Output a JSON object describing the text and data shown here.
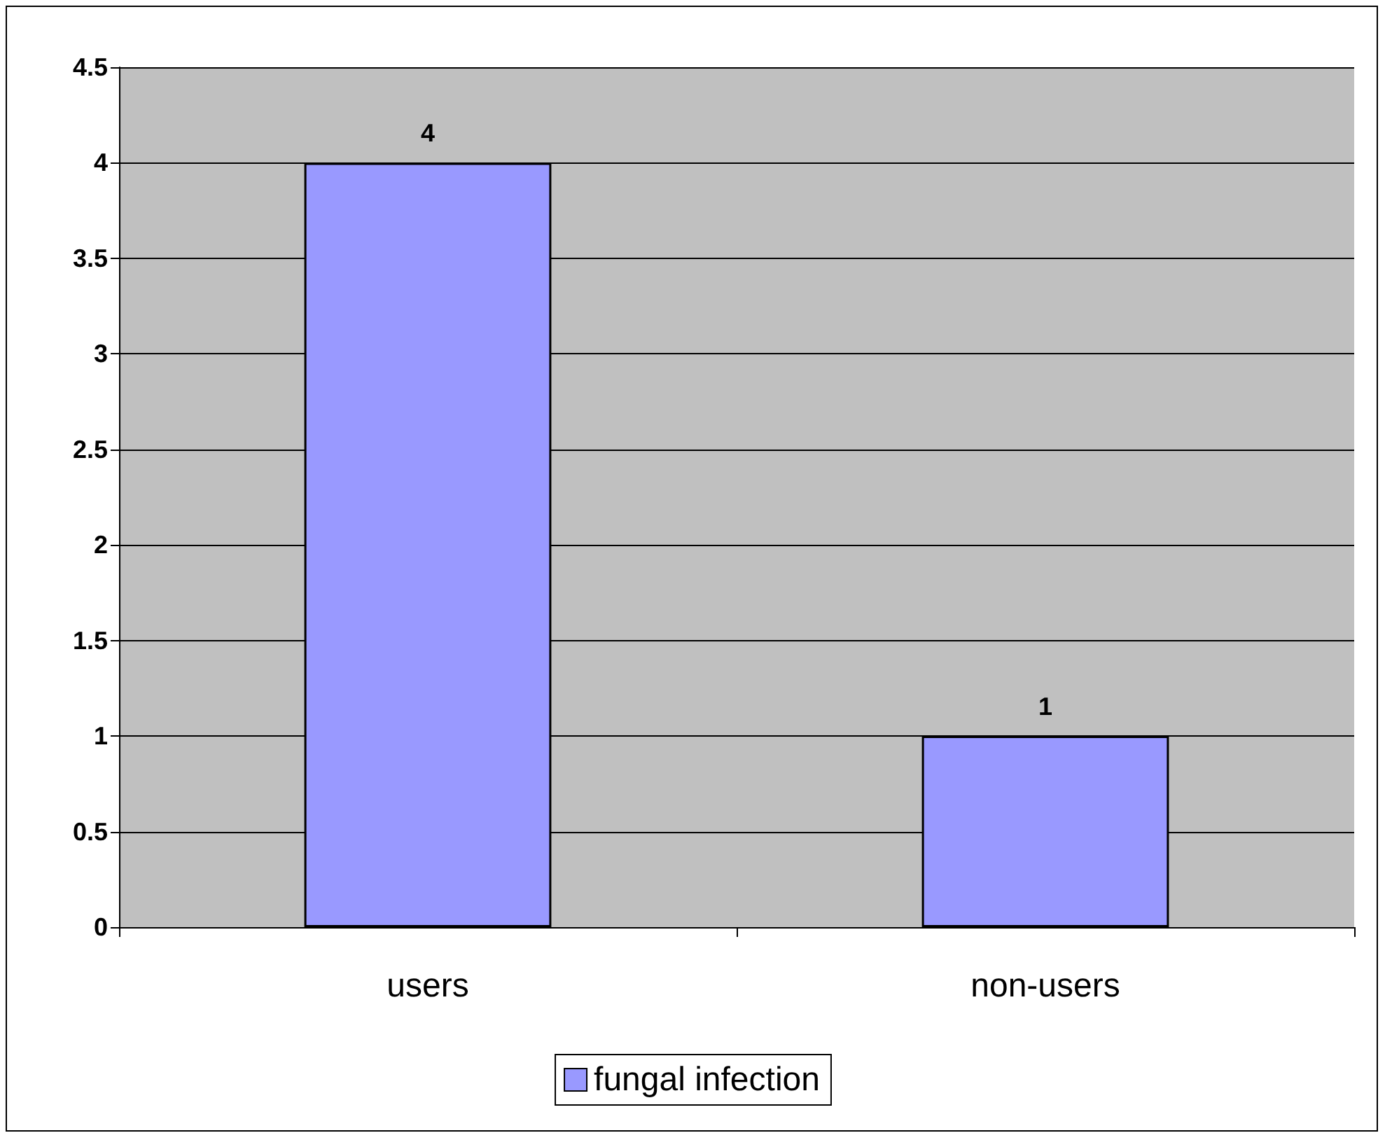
{
  "chart_data": {
    "type": "bar",
    "categories": [
      "users",
      "non-users"
    ],
    "series": [
      {
        "name": "fungal infection",
        "color": "#9999ff",
        "values": [
          4,
          1
        ]
      }
    ],
    "ylim": [
      0,
      4.5
    ],
    "yticks": [
      0,
      0.5,
      1,
      1.5,
      2,
      2.5,
      3,
      3.5,
      4,
      4.5
    ],
    "grid": "y",
    "legend": "bottom",
    "data_labels": true
  }
}
